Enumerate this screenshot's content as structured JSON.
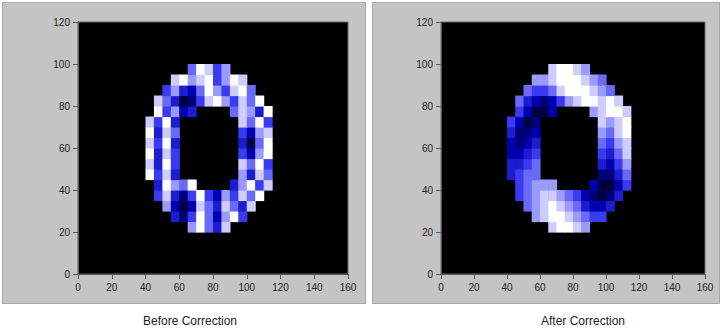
{
  "chart_data": [
    {
      "type": "heatmap",
      "title": "Before Correction",
      "xlim": [
        0,
        160
      ],
      "ylim": [
        0,
        120
      ],
      "xticks": [
        0,
        20,
        40,
        60,
        80,
        100,
        120,
        140,
        160
      ],
      "yticks": [
        0,
        20,
        40,
        60,
        80,
        100,
        120
      ],
      "grid": false,
      "zlim": [
        0,
        8
      ],
      "x": [
        42.5,
        47.5,
        52.5,
        57.5,
        62.5,
        67.5,
        72.5,
        77.5,
        82.5,
        87.5,
        92.5,
        97.5,
        102.5,
        107.5,
        112.5,
        117.5
      ],
      "y": [
        22.5,
        27.5,
        32.5,
        37.5,
        42.5,
        47.5,
        52.5,
        57.5,
        62.5,
        67.5,
        72.5,
        77.5,
        82.5,
        87.5,
        92.5,
        97.5
      ],
      "cells": [
        [
          null,
          null,
          null,
          null,
          null,
          2,
          0,
          3,
          5,
          1,
          null,
          null,
          null,
          null,
          null,
          null
        ],
        [
          null,
          null,
          null,
          5,
          7,
          4,
          0,
          3,
          6,
          2,
          0,
          4,
          null,
          null,
          null,
          null
        ],
        [
          null,
          null,
          2,
          6,
          8,
          6,
          1,
          3,
          5,
          1,
          3,
          5,
          1,
          null,
          null,
          null
        ],
        [
          null,
          4,
          1,
          5,
          7,
          4,
          0,
          4,
          6,
          2,
          4,
          1,
          3,
          0,
          null,
          null
        ],
        [
          null,
          5,
          0,
          2,
          3,
          0,
          null,
          null,
          null,
          null,
          5,
          2,
          0,
          4,
          1,
          null
        ],
        [
          0,
          4,
          1,
          5,
          null,
          null,
          null,
          null,
          null,
          null,
          null,
          2,
          5,
          1,
          3,
          null
        ],
        [
          1,
          5,
          0,
          4,
          null,
          null,
          null,
          null,
          null,
          null,
          null,
          1,
          3,
          0,
          4,
          null
        ],
        [
          0,
          5,
          1,
          4,
          null,
          null,
          null,
          null,
          null,
          null,
          null,
          4,
          6,
          2,
          0,
          null
        ],
        [
          1,
          4,
          0,
          5,
          null,
          null,
          null,
          null,
          null,
          null,
          null,
          5,
          8,
          3,
          0,
          null
        ],
        [
          0,
          5,
          1,
          3,
          null,
          null,
          null,
          null,
          null,
          null,
          null,
          4,
          6,
          2,
          1,
          null
        ],
        [
          1,
          4,
          0,
          5,
          null,
          null,
          null,
          null,
          null,
          null,
          null,
          1,
          3,
          0,
          4,
          null
        ],
        [
          null,
          0,
          4,
          2,
          6,
          5,
          null,
          null,
          null,
          null,
          3,
          1,
          2,
          5,
          0,
          null
        ],
        [
          null,
          1,
          3,
          5,
          8,
          7,
          4,
          1,
          0,
          2,
          4,
          1,
          3,
          0,
          null,
          null
        ],
        [
          null,
          null,
          4,
          2,
          5,
          6,
          3,
          0,
          2,
          4,
          1,
          0,
          3,
          null,
          null,
          null
        ],
        [
          null,
          null,
          null,
          1,
          0,
          2,
          1,
          0,
          4,
          2,
          0,
          1,
          null,
          null,
          null,
          null
        ],
        [
          null,
          null,
          null,
          null,
          null,
          3,
          0,
          1,
          4,
          2,
          null,
          null,
          null,
          null,
          null,
          null
        ]
      ]
    },
    {
      "type": "heatmap",
      "title": "After Correction",
      "xlim": [
        0,
        160
      ],
      "ylim": [
        0,
        120
      ],
      "xticks": [
        0,
        20,
        40,
        60,
        80,
        100,
        120,
        140,
        160
      ],
      "yticks": [
        0,
        20,
        40,
        60,
        80,
        100,
        120
      ],
      "grid": false,
      "zlim": [
        0,
        8
      ],
      "x": [
        42.5,
        47.5,
        52.5,
        57.5,
        62.5,
        67.5,
        72.5,
        77.5,
        82.5,
        87.5,
        92.5,
        97.5,
        102.5,
        107.5,
        112.5,
        117.5
      ],
      "y": [
        22.5,
        27.5,
        32.5,
        37.5,
        42.5,
        47.5,
        52.5,
        57.5,
        62.5,
        67.5,
        72.5,
        77.5,
        82.5,
        87.5,
        92.5,
        97.5
      ],
      "cells": [
        [
          null,
          null,
          null,
          null,
          null,
          1,
          0,
          0,
          1,
          2,
          null,
          null,
          null,
          null,
          null,
          null
        ],
        [
          null,
          null,
          null,
          2,
          1,
          0,
          0,
          1,
          2,
          3,
          4,
          4,
          null,
          null,
          null,
          null
        ],
        [
          null,
          null,
          3,
          2,
          1,
          0,
          1,
          2,
          3,
          5,
          6,
          6,
          5,
          null,
          null,
          null
        ],
        [
          null,
          4,
          3,
          2,
          1,
          1,
          2,
          3,
          4,
          6,
          7,
          8,
          7,
          5,
          null,
          null
        ],
        [
          null,
          4,
          3,
          2,
          2,
          2,
          null,
          null,
          null,
          null,
          6,
          8,
          8,
          6,
          4,
          null
        ],
        [
          5,
          4,
          3,
          3,
          null,
          null,
          null,
          null,
          null,
          null,
          null,
          7,
          7,
          5,
          3,
          null
        ],
        [
          5,
          5,
          4,
          3,
          null,
          null,
          null,
          null,
          null,
          null,
          null,
          5,
          6,
          4,
          2,
          null
        ],
        [
          6,
          6,
          5,
          4,
          null,
          null,
          null,
          null,
          null,
          null,
          null,
          4,
          5,
          3,
          1,
          null
        ],
        [
          6,
          7,
          6,
          5,
          null,
          null,
          null,
          null,
          null,
          null,
          null,
          3,
          4,
          2,
          1,
          null
        ],
        [
          5,
          7,
          7,
          6,
          null,
          null,
          null,
          null,
          null,
          null,
          null,
          2,
          3,
          1,
          0,
          null
        ],
        [
          4,
          6,
          8,
          7,
          null,
          null,
          null,
          null,
          null,
          null,
          null,
          1,
          2,
          1,
          0,
          null
        ],
        [
          null,
          4,
          6,
          8,
          8,
          6,
          null,
          null,
          null,
          null,
          2,
          1,
          0,
          0,
          1,
          null
        ],
        [
          null,
          3,
          5,
          6,
          7,
          6,
          4,
          2,
          1,
          0,
          0,
          1,
          0,
          1,
          null,
          null
        ],
        [
          null,
          null,
          3,
          4,
          4,
          3,
          1,
          0,
          0,
          0,
          1,
          2,
          3,
          null,
          null,
          null
        ],
        [
          null,
          null,
          null,
          2,
          2,
          1,
          0,
          0,
          0,
          1,
          2,
          3,
          null,
          null,
          null,
          null
        ],
        [
          null,
          null,
          null,
          null,
          null,
          1,
          0,
          0,
          1,
          2,
          null,
          null,
          null,
          null,
          null,
          null
        ]
      ]
    }
  ]
}
